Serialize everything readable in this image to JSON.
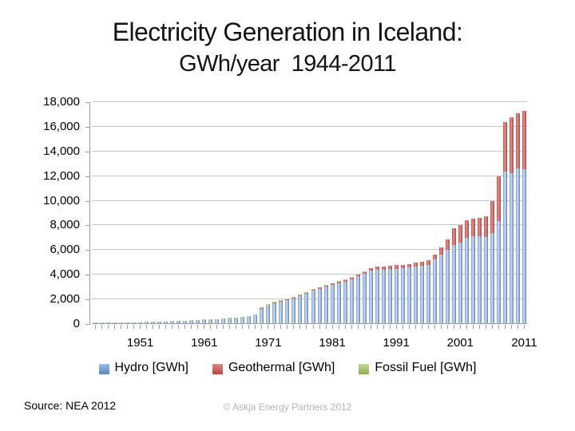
{
  "title": {
    "line1": "Electricity Generation in Iceland:",
    "line2": "GWh/year  1944-2011"
  },
  "chart_data": {
    "type": "bar",
    "stacked": true,
    "title": "Electricity Generation in Iceland: GWh/year 1944-2011",
    "xlabel": "",
    "ylabel": "",
    "ylim": [
      0,
      18000
    ],
    "ytick_step": 2000,
    "ytick_labels": [
      "0",
      "2,000",
      "4,000",
      "6,000",
      "8,000",
      "10,000",
      "12,000",
      "14,000",
      "16,000",
      "18,000"
    ],
    "xtick_labels": [
      "1951",
      "1961",
      "1971",
      "1981",
      "1991",
      "2001",
      "2011"
    ],
    "xtick_indices": [
      7,
      17,
      27,
      37,
      47,
      57,
      67
    ],
    "grid": true,
    "legend_position": "bottom",
    "x": [
      1944,
      1945,
      1946,
      1947,
      1948,
      1949,
      1950,
      1951,
      1952,
      1953,
      1954,
      1955,
      1956,
      1957,
      1958,
      1959,
      1960,
      1961,
      1962,
      1963,
      1964,
      1965,
      1966,
      1967,
      1968,
      1969,
      1970,
      1971,
      1972,
      1973,
      1974,
      1975,
      1976,
      1977,
      1978,
      1979,
      1980,
      1981,
      1982,
      1983,
      1984,
      1985,
      1986,
      1987,
      1988,
      1989,
      1990,
      1991,
      1992,
      1993,
      1994,
      1995,
      1996,
      1997,
      1998,
      1999,
      2000,
      2001,
      2002,
      2003,
      2004,
      2005,
      2006,
      2007,
      2008,
      2009,
      2010,
      2011
    ],
    "series": [
      {
        "name": "Hydro [GWh]",
        "color": "#95b3d7",
        "gradient": [
          "#7fa1cc",
          "#cdddf0",
          "#5d84b4"
        ],
        "legend_gradient": [
          "#9cbce2",
          "#5b88bd"
        ],
        "values": [
          40,
          44,
          48,
          53,
          58,
          65,
          72,
          82,
          92,
          105,
          120,
          136,
          152,
          170,
          192,
          215,
          238,
          262,
          288,
          316,
          347,
          380,
          415,
          452,
          492,
          620,
          1180,
          1400,
          1650,
          1750,
          1870,
          2030,
          2220,
          2410,
          2650,
          2810,
          2950,
          3090,
          3250,
          3370,
          3570,
          3790,
          3990,
          4290,
          4350,
          4360,
          4380,
          4430,
          4460,
          4510,
          4620,
          4690,
          4760,
          5150,
          5570,
          5990,
          6360,
          6510,
          6910,
          7080,
          7060,
          7020,
          7290,
          8310,
          12300,
          12160,
          12590,
          12510
        ]
      },
      {
        "name": "Geothermal [GWh]",
        "color": "#c0504d",
        "gradient": [
          "#c35754",
          "#dc938f",
          "#aa403e"
        ],
        "legend_gradient": [
          "#d98c88",
          "#b94743"
        ],
        "values": [
          0,
          0,
          0,
          0,
          0,
          0,
          0,
          0,
          0,
          0,
          0,
          0,
          0,
          0,
          0,
          0,
          0,
          0,
          0,
          0,
          2,
          3,
          4,
          5,
          6,
          10,
          43,
          45,
          48,
          50,
          55,
          60,
          65,
          70,
          80,
          95,
          110,
          120,
          130,
          140,
          150,
          160,
          170,
          180,
          230,
          250,
          283,
          290,
          290,
          300,
          300,
          290,
          340,
          430,
          600,
          820,
          1323,
          1434,
          1433,
          1406,
          1483,
          1658,
          2631,
          3579,
          4038,
          4553,
          4465,
          4701
        ]
      },
      {
        "name": "Fossil Fuel [GWh]",
        "color": "#9bbb59",
        "gradient": [
          "#a3bd6a",
          "#d5e3b2",
          "#8aa64c"
        ],
        "legend_gradient": [
          "#c6d89a",
          "#8fae4e"
        ],
        "values": [
          4,
          5,
          5,
          6,
          7,
          9,
          11,
          12,
          13,
          14,
          15,
          17,
          19,
          22,
          25,
          28,
          31,
          34,
          37,
          41,
          45,
          49,
          55,
          61,
          68,
          72,
          76,
          80,
          84,
          88,
          92,
          60,
          55,
          50,
          45,
          42,
          38,
          34,
          30,
          28,
          26,
          24,
          22,
          20,
          18,
          16,
          14,
          12,
          11,
          10,
          9,
          8,
          8,
          7,
          6,
          6,
          6,
          5,
          5,
          5,
          5,
          5,
          5,
          5,
          5,
          5,
          5,
          5
        ]
      }
    ]
  },
  "footer": {
    "source": "Source: NEA 2012",
    "copyright": "© Askja Energy Partners 2012"
  }
}
